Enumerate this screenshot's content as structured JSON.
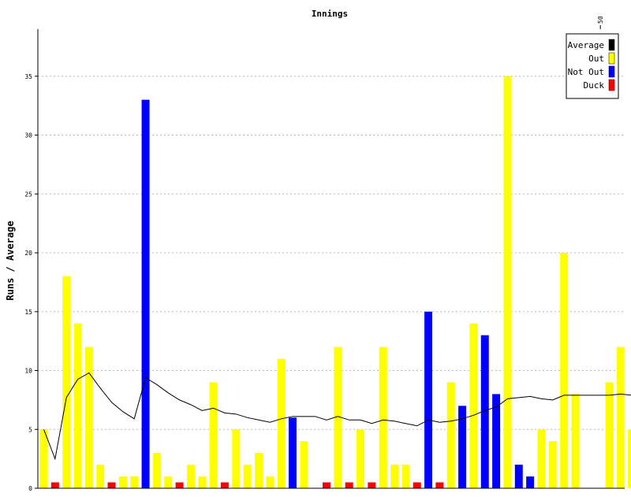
{
  "chart_data": {
    "type": "bar",
    "title": "Innings",
    "xlabel": "",
    "ylabel": "Runs / Average",
    "ylim": [
      0,
      39
    ],
    "yticks": [
      0,
      5,
      10,
      15,
      20,
      25,
      30,
      35
    ],
    "top_axis_labels": [
      {
        "innings": 50,
        "label": "50"
      }
    ],
    "grid": true,
    "legend_position": "top-right",
    "series": [
      {
        "name": "Average",
        "color": "#000000"
      },
      {
        "name": "Out",
        "color": "#ffff00"
      },
      {
        "name": "Not Out",
        "color": "#0000ff"
      },
      {
        "name": "Duck",
        "color": "#ff0000"
      }
    ],
    "innings": [
      {
        "runs": 5,
        "status": "Out"
      },
      {
        "runs": 0,
        "status": "Duck"
      },
      {
        "runs": 18,
        "status": "Out"
      },
      {
        "runs": 14,
        "status": "Out"
      },
      {
        "runs": 12,
        "status": "Out"
      },
      {
        "runs": 2,
        "status": "Out"
      },
      {
        "runs": 0,
        "status": "Duck"
      },
      {
        "runs": 1,
        "status": "Out"
      },
      {
        "runs": 1,
        "status": "Out"
      },
      {
        "runs": 33,
        "status": "Not Out"
      },
      {
        "runs": 3,
        "status": "Out"
      },
      {
        "runs": 1,
        "status": "Out"
      },
      {
        "runs": 0,
        "status": "Duck"
      },
      {
        "runs": 2,
        "status": "Out"
      },
      {
        "runs": 1,
        "status": "Out"
      },
      {
        "runs": 9,
        "status": "Out"
      },
      {
        "runs": 0,
        "status": "Duck"
      },
      {
        "runs": 5,
        "status": "Out"
      },
      {
        "runs": 2,
        "status": "Out"
      },
      {
        "runs": 3,
        "status": "Out"
      },
      {
        "runs": 1,
        "status": "Out"
      },
      {
        "runs": 11,
        "status": "Out"
      },
      {
        "runs": 6,
        "status": "Not Out"
      },
      {
        "runs": 4,
        "status": "Out"
      },
      {
        "runs": 0,
        "status": "Empty"
      },
      {
        "runs": 0,
        "status": "Duck"
      },
      {
        "runs": 12,
        "status": "Out"
      },
      {
        "runs": 0,
        "status": "Duck"
      },
      {
        "runs": 5,
        "status": "Out"
      },
      {
        "runs": 0,
        "status": "Duck"
      },
      {
        "runs": 12,
        "status": "Out"
      },
      {
        "runs": 2,
        "status": "Out"
      },
      {
        "runs": 2,
        "status": "Out"
      },
      {
        "runs": 0,
        "status": "Duck"
      },
      {
        "runs": 15,
        "status": "Not Out"
      },
      {
        "runs": 0,
        "status": "Duck"
      },
      {
        "runs": 9,
        "status": "Out"
      },
      {
        "runs": 7,
        "status": "Not Out"
      },
      {
        "runs": 14,
        "status": "Out"
      },
      {
        "runs": 13,
        "status": "Not Out"
      },
      {
        "runs": 8,
        "status": "Not Out"
      },
      {
        "runs": 35,
        "status": "Out"
      },
      {
        "runs": 2,
        "status": "Not Out"
      },
      {
        "runs": 1,
        "status": "Not Out"
      },
      {
        "runs": 5,
        "status": "Out"
      },
      {
        "runs": 4,
        "status": "Out"
      },
      {
        "runs": 20,
        "status": "Out"
      },
      {
        "runs": 8,
        "status": "Out"
      },
      {
        "runs": 0,
        "status": "Empty"
      },
      {
        "runs": 0,
        "status": "Empty"
      },
      {
        "runs": 9,
        "status": "Out"
      },
      {
        "runs": 12,
        "status": "Out"
      },
      {
        "runs": 5,
        "status": "Out"
      }
    ],
    "average": [
      5.0,
      2.5,
      7.7,
      9.25,
      9.8,
      8.5,
      7.3,
      6.5,
      5.9,
      9.4,
      8.8,
      8.1,
      7.5,
      7.1,
      6.6,
      6.8,
      6.4,
      6.3,
      6.0,
      5.8,
      5.6,
      5.9,
      6.1,
      6.1,
      6.1,
      5.8,
      6.1,
      5.8,
      5.8,
      5.5,
      5.8,
      5.7,
      5.5,
      5.3,
      5.8,
      5.6,
      5.7,
      5.9,
      6.2,
      6.6,
      6.9,
      7.6,
      7.7,
      7.8,
      7.6,
      7.5,
      7.9,
      7.9,
      7.9,
      7.9,
      7.9,
      8.0,
      7.9
    ]
  }
}
